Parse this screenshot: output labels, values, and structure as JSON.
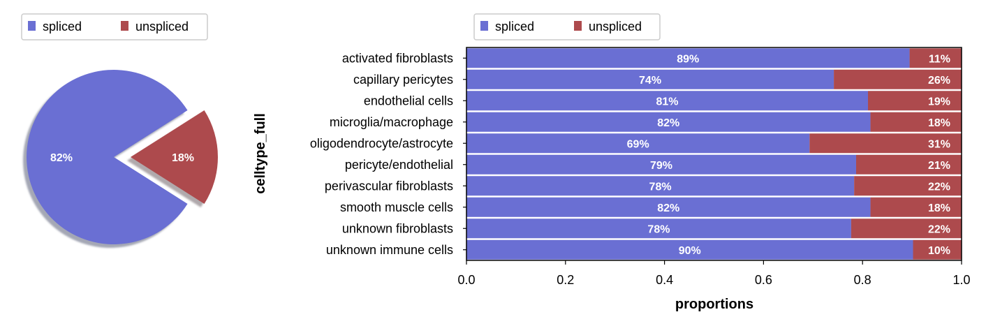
{
  "colors": {
    "spliced": "#6a6fd3",
    "unspliced": "#ad4a4d"
  },
  "chart_data": [
    {
      "type": "pie",
      "legend": {
        "placement": "top",
        "entries": [
          "spliced",
          "unspliced"
        ]
      },
      "slices": [
        {
          "label": "spliced",
          "value": 82,
          "display": "82%"
        },
        {
          "label": "unspliced",
          "value": 18,
          "display": "18%"
        }
      ],
      "exploded": "unspliced",
      "shadow": true
    },
    {
      "type": "bar",
      "orientation": "horizontal",
      "stacked": true,
      "legend": {
        "placement": "top",
        "entries": [
          "spliced",
          "unspliced"
        ]
      },
      "ylabel": "celltype_full",
      "xlabel": "proportions",
      "xlim": [
        0,
        1
      ],
      "xticks": [
        "0.0",
        "0.2",
        "0.4",
        "0.6",
        "0.8",
        "1.0"
      ],
      "grid": false,
      "categories": [
        "activated fibroblasts",
        "capillary pericytes",
        "endothelial cells",
        "microglia/macrophage",
        "oligodendrocyte/astrocyte",
        "pericyte/endothelial",
        "perivascular fibroblasts",
        "smooth muscle cells",
        "unknown fibroblasts",
        "unknown immune cells"
      ],
      "series": [
        {
          "name": "spliced",
          "values": [
            0.895,
            0.742,
            0.811,
            0.816,
            0.693,
            0.787,
            0.783,
            0.816,
            0.777,
            0.902
          ],
          "labels": [
            "89%",
            "74%",
            "81%",
            "82%",
            "69%",
            "79%",
            "78%",
            "82%",
            "78%",
            "90%"
          ]
        },
        {
          "name": "unspliced",
          "values": [
            0.105,
            0.258,
            0.189,
            0.184,
            0.307,
            0.213,
            0.217,
            0.184,
            0.223,
            0.098
          ],
          "labels": [
            "11%",
            "26%",
            "19%",
            "18%",
            "31%",
            "21%",
            "22%",
            "18%",
            "22%",
            "10%"
          ]
        }
      ]
    }
  ]
}
